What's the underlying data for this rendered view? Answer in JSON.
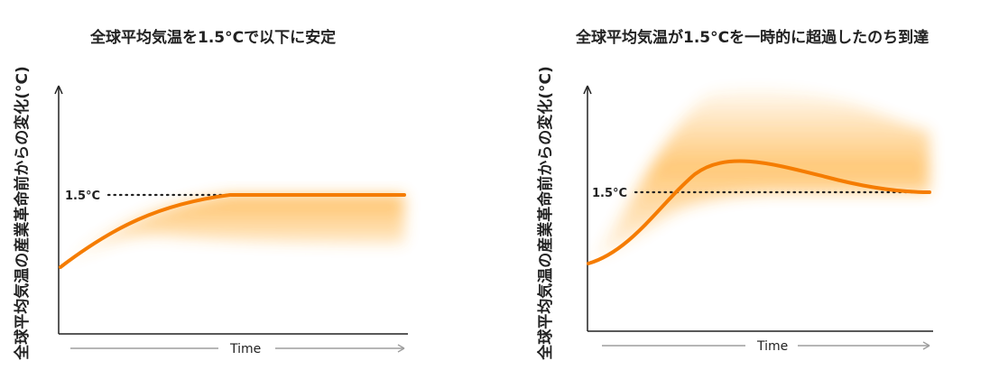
{
  "charts": [
    {
      "title": "全球平均気温を1.5°Cで以下に安定",
      "ylabel": "全球平均気温の産業革命前からの変化(°C)",
      "xlabel": "Time",
      "reference_label": "1.5°C"
    },
    {
      "title": "全球平均気温が1.5°Cを一時的に超過したのち到達",
      "ylabel": "全球平均気温の産業革命前からの変化(°C)",
      "xlabel": "Time",
      "reference_label": "1.5°C"
    }
  ],
  "chart_data": [
    {
      "type": "area",
      "title": "全球平均気温を1.5°Cで以下に安定",
      "xlabel": "Time",
      "ylabel": "全球平均気温の産業革命前からの変化(°C)",
      "reference_line": {
        "label": "1.5°C",
        "value": 1.5
      },
      "series": [
        {
          "x": [
            0,
            0.1,
            0.2,
            0.3,
            0.4,
            0.5,
            0.6,
            0.7,
            0.8,
            0.9,
            1
          ],
          "values": [
            0.95,
            1.08,
            1.2,
            1.32,
            1.42,
            1.48,
            1.5,
            1.5,
            1.5,
            1.5,
            1.5
          ]
        }
      ],
      "range_band": {
        "upper": [
          0.95,
          1.08,
          1.2,
          1.32,
          1.42,
          1.48,
          1.5,
          1.5,
          1.5,
          1.5,
          1.5
        ],
        "lower": [
          0.95,
          0.98,
          1.02,
          1.07,
          1.12,
          1.16,
          1.19,
          1.2,
          1.2,
          1.2,
          1.2
        ]
      },
      "xlim": [
        0,
        1
      ],
      "ylim": [
        0.5,
        2.2
      ],
      "grid": false
    },
    {
      "type": "area",
      "title": "全球平均気温が1.5°Cを一時的に超過したのち到達",
      "xlabel": "Time",
      "ylabel": "全球平均気温の産業革命前からの変化(°C)",
      "reference_line": {
        "label": "1.5°C",
        "value": 1.5
      },
      "series": [
        {
          "x": [
            0,
            0.08,
            0.16,
            0.25,
            0.33,
            0.42,
            0.5,
            0.58,
            0.67,
            0.75,
            0.83,
            0.92,
            1
          ],
          "values": [
            0.93,
            1.03,
            1.22,
            1.43,
            1.62,
            1.72,
            1.74,
            1.71,
            1.66,
            1.6,
            1.54,
            1.5,
            1.5
          ]
        }
      ],
      "range_band": {
        "upper": [
          0.93,
          1.25,
          1.65,
          1.95,
          2.12,
          2.2,
          2.2,
          2.15,
          2.1,
          2.05,
          2.0,
          1.97,
          1.95
        ],
        "lower": [
          0.93,
          0.97,
          1.05,
          1.18,
          1.32,
          1.42,
          1.48,
          1.5,
          1.5,
          1.5,
          1.5,
          1.5,
          1.5
        ]
      },
      "xlim": [
        0,
        1
      ],
      "ylim": [
        0.5,
        2.2
      ],
      "grid": false
    }
  ],
  "colors": {
    "line": "#f57c00",
    "band": "#ffb74d",
    "axis": "#222222",
    "time_arrow": "#9e9e9e",
    "reference": "#222222"
  }
}
